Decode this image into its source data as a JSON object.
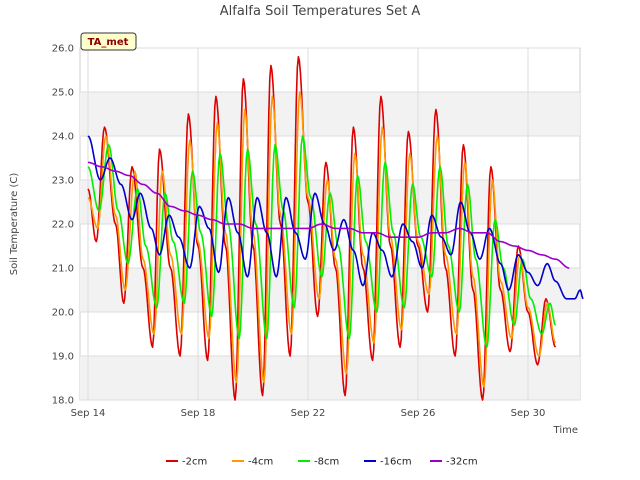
{
  "chart_data": {
    "type": "line",
    "title": "Alfalfa Soil Temperatures Set A",
    "xlabel": "Time",
    "ylabel": "Soil Temperature (C)",
    "badge": "TA_met",
    "x_range_days": [
      0,
      17.5
    ],
    "ylim": [
      18.0,
      26.0
    ],
    "yticks": [
      18.0,
      19.0,
      20.0,
      21.0,
      22.0,
      23.0,
      24.0,
      25.0,
      26.0
    ],
    "ytick_labels": [
      "18.0",
      "19.0",
      "20.0",
      "21.0",
      "22.0",
      "23.0",
      "24.0",
      "25.0",
      "26.0"
    ],
    "xticks": [
      0,
      4,
      8,
      12,
      16
    ],
    "xtick_labels": [
      "Sep 14",
      "Sep 18",
      "Sep 22",
      "Sep 26",
      "Sep 30"
    ],
    "grid": true,
    "legend_position": "bottom",
    "series_keypoints_comment_free": true,
    "series": [
      {
        "name": "-2cm",
        "color": "#dd0000",
        "points": [
          [
            0.0,
            22.8
          ],
          [
            0.3,
            21.6
          ],
          [
            0.6,
            24.2
          ],
          [
            1.0,
            22.0
          ],
          [
            1.3,
            20.2
          ],
          [
            1.6,
            23.3
          ],
          [
            2.0,
            21.0
          ],
          [
            2.35,
            19.2
          ],
          [
            2.6,
            23.7
          ],
          [
            3.0,
            21.0
          ],
          [
            3.35,
            19.0
          ],
          [
            3.65,
            24.5
          ],
          [
            4.0,
            21.5
          ],
          [
            4.35,
            18.9
          ],
          [
            4.65,
            24.9
          ],
          [
            5.0,
            21.5
          ],
          [
            5.35,
            18.0
          ],
          [
            5.65,
            25.3
          ],
          [
            6.0,
            21.5
          ],
          [
            6.35,
            18.1
          ],
          [
            6.65,
            25.6
          ],
          [
            7.0,
            22.0
          ],
          [
            7.35,
            19.0
          ],
          [
            7.65,
            25.8
          ],
          [
            8.0,
            22.5
          ],
          [
            8.35,
            19.9
          ],
          [
            8.65,
            23.4
          ],
          [
            9.0,
            21.0
          ],
          [
            9.35,
            18.1
          ],
          [
            9.65,
            24.2
          ],
          [
            10.0,
            21.0
          ],
          [
            10.35,
            18.9
          ],
          [
            10.65,
            24.9
          ],
          [
            11.0,
            21.5
          ],
          [
            11.35,
            19.2
          ],
          [
            11.65,
            24.1
          ],
          [
            12.0,
            21.5
          ],
          [
            12.35,
            20.0
          ],
          [
            12.65,
            24.6
          ],
          [
            13.0,
            21.0
          ],
          [
            13.35,
            19.0
          ],
          [
            13.65,
            23.8
          ],
          [
            14.0,
            20.5
          ],
          [
            14.35,
            18.0
          ],
          [
            14.65,
            23.3
          ],
          [
            15.0,
            20.5
          ],
          [
            15.35,
            19.1
          ],
          [
            15.65,
            21.5
          ],
          [
            16.0,
            20.0
          ],
          [
            16.35,
            18.8
          ],
          [
            16.65,
            20.3
          ],
          [
            17.0,
            19.2
          ]
        ]
      },
      {
        "name": "-4cm",
        "color": "#ff9900",
        "points": [
          [
            0.0,
            22.6
          ],
          [
            0.35,
            21.9
          ],
          [
            0.65,
            24.0
          ],
          [
            1.0,
            22.2
          ],
          [
            1.35,
            20.5
          ],
          [
            1.7,
            23.2
          ],
          [
            2.0,
            21.2
          ],
          [
            2.4,
            19.5
          ],
          [
            2.7,
            23.2
          ],
          [
            3.0,
            21.3
          ],
          [
            3.4,
            19.5
          ],
          [
            3.7,
            23.9
          ],
          [
            4.0,
            21.6
          ],
          [
            4.4,
            19.4
          ],
          [
            4.7,
            24.3
          ],
          [
            5.0,
            21.8
          ],
          [
            5.4,
            18.4
          ],
          [
            5.7,
            24.6
          ],
          [
            6.0,
            21.8
          ],
          [
            6.4,
            18.4
          ],
          [
            6.7,
            24.9
          ],
          [
            7.0,
            22.2
          ],
          [
            7.4,
            19.5
          ],
          [
            7.7,
            25.0
          ],
          [
            8.0,
            22.6
          ],
          [
            8.4,
            20.3
          ],
          [
            8.7,
            23.0
          ],
          [
            9.0,
            21.2
          ],
          [
            9.4,
            18.6
          ],
          [
            9.7,
            23.6
          ],
          [
            10.0,
            21.3
          ],
          [
            10.4,
            19.3
          ],
          [
            10.7,
            24.2
          ],
          [
            11.0,
            21.7
          ],
          [
            11.4,
            19.6
          ],
          [
            11.7,
            23.6
          ],
          [
            12.0,
            21.6
          ],
          [
            12.4,
            20.4
          ],
          [
            12.7,
            24.0
          ],
          [
            13.0,
            21.3
          ],
          [
            13.4,
            19.5
          ],
          [
            13.7,
            23.4
          ],
          [
            14.0,
            20.8
          ],
          [
            14.4,
            18.3
          ],
          [
            14.7,
            23.0
          ],
          [
            15.0,
            20.7
          ],
          [
            15.4,
            19.4
          ],
          [
            15.7,
            21.3
          ],
          [
            16.0,
            20.1
          ],
          [
            16.4,
            19.0
          ],
          [
            16.7,
            20.2
          ],
          [
            17.0,
            19.3
          ]
        ]
      },
      {
        "name": "-8cm",
        "color": "#00ee00",
        "points": [
          [
            0.0,
            23.3
          ],
          [
            0.4,
            22.3
          ],
          [
            0.75,
            23.8
          ],
          [
            1.1,
            22.3
          ],
          [
            1.45,
            21.1
          ],
          [
            1.8,
            22.8
          ],
          [
            2.1,
            21.5
          ],
          [
            2.5,
            20.1
          ],
          [
            2.8,
            22.7
          ],
          [
            3.1,
            21.6
          ],
          [
            3.5,
            20.2
          ],
          [
            3.8,
            23.2
          ],
          [
            4.1,
            21.8
          ],
          [
            4.5,
            19.9
          ],
          [
            4.8,
            23.6
          ],
          [
            5.1,
            22.0
          ],
          [
            5.5,
            19.4
          ],
          [
            5.8,
            23.7
          ],
          [
            6.1,
            22.0
          ],
          [
            6.5,
            19.4
          ],
          [
            6.8,
            23.8
          ],
          [
            7.1,
            22.3
          ],
          [
            7.5,
            20.1
          ],
          [
            7.8,
            24.0
          ],
          [
            8.1,
            22.6
          ],
          [
            8.5,
            20.8
          ],
          [
            8.8,
            22.7
          ],
          [
            9.1,
            21.5
          ],
          [
            9.5,
            19.4
          ],
          [
            9.8,
            23.1
          ],
          [
            10.1,
            21.6
          ],
          [
            10.5,
            20.0
          ],
          [
            10.8,
            23.4
          ],
          [
            11.1,
            21.8
          ],
          [
            11.5,
            20.1
          ],
          [
            11.8,
            22.9
          ],
          [
            12.1,
            21.7
          ],
          [
            12.5,
            20.8
          ],
          [
            12.8,
            23.3
          ],
          [
            13.1,
            21.5
          ],
          [
            13.5,
            20.0
          ],
          [
            13.8,
            22.9
          ],
          [
            14.1,
            21.2
          ],
          [
            14.5,
            19.2
          ],
          [
            14.8,
            22.1
          ],
          [
            15.1,
            21.0
          ],
          [
            15.5,
            19.7
          ],
          [
            15.8,
            21.2
          ],
          [
            16.1,
            20.3
          ],
          [
            16.5,
            19.5
          ],
          [
            16.8,
            20.2
          ],
          [
            17.0,
            19.7
          ]
        ]
      },
      {
        "name": "-16cm",
        "color": "#0000cc",
        "points": [
          [
            0.0,
            24.0
          ],
          [
            0.45,
            23.0
          ],
          [
            0.8,
            23.5
          ],
          [
            1.2,
            22.9
          ],
          [
            1.6,
            22.1
          ],
          [
            1.9,
            22.7
          ],
          [
            2.3,
            21.9
          ],
          [
            2.6,
            21.3
          ],
          [
            2.95,
            22.2
          ],
          [
            3.3,
            21.7
          ],
          [
            3.7,
            21.0
          ],
          [
            4.05,
            22.4
          ],
          [
            4.4,
            21.9
          ],
          [
            4.75,
            20.9
          ],
          [
            5.1,
            22.6
          ],
          [
            5.45,
            21.8
          ],
          [
            5.8,
            20.8
          ],
          [
            6.15,
            22.6
          ],
          [
            6.5,
            21.8
          ],
          [
            6.85,
            20.8
          ],
          [
            7.2,
            22.6
          ],
          [
            7.55,
            21.8
          ],
          [
            7.9,
            21.2
          ],
          [
            8.25,
            22.7
          ],
          [
            8.6,
            22.0
          ],
          [
            8.95,
            21.4
          ],
          [
            9.3,
            22.1
          ],
          [
            9.65,
            21.4
          ],
          [
            10.0,
            20.6
          ],
          [
            10.35,
            21.8
          ],
          [
            10.7,
            21.4
          ],
          [
            11.05,
            20.8
          ],
          [
            11.45,
            22.0
          ],
          [
            11.8,
            21.6
          ],
          [
            12.15,
            21.0
          ],
          [
            12.5,
            22.2
          ],
          [
            12.85,
            21.7
          ],
          [
            13.2,
            21.3
          ],
          [
            13.55,
            22.5
          ],
          [
            13.9,
            21.8
          ],
          [
            14.25,
            21.2
          ],
          [
            14.6,
            21.9
          ],
          [
            15.0,
            21.1
          ],
          [
            15.3,
            20.5
          ],
          [
            15.65,
            21.3
          ],
          [
            16.0,
            20.9
          ],
          [
            16.35,
            20.6
          ],
          [
            16.7,
            21.1
          ],
          [
            17.0,
            20.7
          ],
          [
            17.4,
            20.3
          ],
          [
            17.7,
            20.3
          ],
          [
            17.9,
            20.5
          ],
          [
            18.0,
            20.3
          ]
        ]
      },
      {
        "name": "-32cm",
        "color": "#9900cc",
        "points": [
          [
            0.0,
            23.4
          ],
          [
            0.5,
            23.3
          ],
          [
            1.0,
            23.2
          ],
          [
            1.5,
            23.1
          ],
          [
            2.0,
            22.9
          ],
          [
            2.5,
            22.7
          ],
          [
            3.0,
            22.4
          ],
          [
            3.5,
            22.3
          ],
          [
            4.0,
            22.2
          ],
          [
            4.5,
            22.1
          ],
          [
            5.0,
            22.0
          ],
          [
            5.5,
            22.0
          ],
          [
            6.0,
            21.9
          ],
          [
            6.5,
            21.9
          ],
          [
            7.0,
            21.9
          ],
          [
            7.5,
            21.9
          ],
          [
            8.0,
            21.9
          ],
          [
            8.5,
            22.0
          ],
          [
            9.0,
            21.9
          ],
          [
            9.5,
            21.9
          ],
          [
            10.0,
            21.8
          ],
          [
            10.5,
            21.8
          ],
          [
            11.0,
            21.7
          ],
          [
            11.5,
            21.7
          ],
          [
            12.0,
            21.7
          ],
          [
            12.5,
            21.8
          ],
          [
            13.0,
            21.8
          ],
          [
            13.5,
            21.9
          ],
          [
            14.0,
            21.8
          ],
          [
            14.5,
            21.8
          ],
          [
            15.0,
            21.6
          ],
          [
            15.5,
            21.5
          ],
          [
            16.0,
            21.4
          ],
          [
            16.5,
            21.3
          ],
          [
            17.0,
            21.2
          ],
          [
            17.5,
            21.0
          ]
        ]
      }
    ]
  }
}
